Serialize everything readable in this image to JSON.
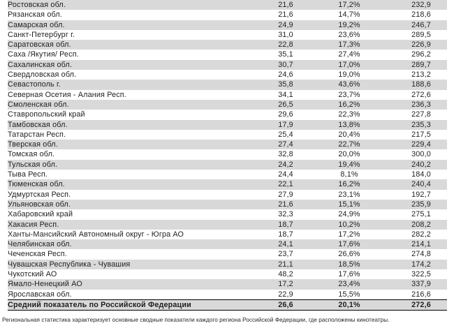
{
  "colors": {
    "stripe_gray": "#d9d9d9",
    "row_white": "#ffffff",
    "text": "#1f1f1f",
    "summary_border": "#000000"
  },
  "table": {
    "rows": [
      {
        "region": "Ростовская обл.",
        "values": [
          "21,6",
          "17,2%",
          "232,9"
        ]
      },
      {
        "region": "Рязанская обл.",
        "values": [
          "21,6",
          "14,7%",
          "218,6"
        ]
      },
      {
        "region": "Самарская обл.",
        "values": [
          "24,9",
          "19,2%",
          "246,7"
        ]
      },
      {
        "region": "Санкт-Петербург г.",
        "values": [
          "31,0",
          "23,6%",
          "289,5"
        ]
      },
      {
        "region": "Саратовская обл.",
        "values": [
          "22,8",
          "17,3%",
          "226,9"
        ]
      },
      {
        "region": "Саха /Якутия/ Респ.",
        "values": [
          "35,1",
          "27,4%",
          "296,2"
        ]
      },
      {
        "region": "Сахалинская обл.",
        "values": [
          "30,7",
          "17,0%",
          "289,7"
        ]
      },
      {
        "region": "Свердловская обл.",
        "values": [
          "24,6",
          "19,0%",
          "213,2"
        ]
      },
      {
        "region": "Севастополь г.",
        "values": [
          "35,8",
          "43,6%",
          "188,6"
        ]
      },
      {
        "region": "Северная Осетия - Алания Респ.",
        "values": [
          "34,1",
          "23,7%",
          "272,6"
        ]
      },
      {
        "region": "Смоленская обл.",
        "values": [
          "26,5",
          "16,2%",
          "236,3"
        ]
      },
      {
        "region": "Ставропольский край",
        "values": [
          "29,6",
          "22,3%",
          "227,8"
        ]
      },
      {
        "region": "Тамбовская обл.",
        "values": [
          "17,9",
          "13,8%",
          "235,3"
        ]
      },
      {
        "region": "Татарстан Респ.",
        "values": [
          "25,4",
          "20,4%",
          "217,5"
        ]
      },
      {
        "region": "Тверская обл.",
        "values": [
          "27,4",
          "22,7%",
          "229,4"
        ]
      },
      {
        "region": "Томская обл.",
        "values": [
          "32,8",
          "20,0%",
          "300,0"
        ]
      },
      {
        "region": "Тульская обл.",
        "values": [
          "24,2",
          "19,4%",
          "240,2"
        ]
      },
      {
        "region": "Тыва Респ.",
        "values": [
          "24,4",
          "8,1%",
          "184,0"
        ]
      },
      {
        "region": "Тюменская обл.",
        "values": [
          "22,1",
          "16,2%",
          "240,4"
        ]
      },
      {
        "region": "Удмуртская Респ.",
        "values": [
          "27,9",
          "23,1%",
          "192,7"
        ]
      },
      {
        "region": "Ульяновская обл.",
        "values": [
          "21,6",
          "15,1%",
          "235,9"
        ]
      },
      {
        "region": "Хабаровский край",
        "values": [
          "32,3",
          "24,9%",
          "275,1"
        ]
      },
      {
        "region": "Хакасия Респ.",
        "values": [
          "18,7",
          "10,2%",
          "208,2"
        ]
      },
      {
        "region": "Ханты-Мансийский Автономный округ - Югра АО",
        "values": [
          "18,7",
          "17,2%",
          "282,2"
        ]
      },
      {
        "region": "Челябинская обл.",
        "values": [
          "24,1",
          "17,6%",
          "214,1"
        ]
      },
      {
        "region": "Чеченская Респ.",
        "values": [
          "23,7",
          "26,6%",
          "274,8"
        ]
      },
      {
        "region": "Чувашская Республика - Чувашия",
        "values": [
          "21,1",
          "18,5%",
          "174,2"
        ]
      },
      {
        "region": "Чукотский АО",
        "values": [
          "48,2",
          "17,6%",
          "322,5"
        ]
      },
      {
        "region": "Ямало-Ненецкий АО",
        "values": [
          "17,2",
          "23,4%",
          "337,9"
        ]
      },
      {
        "region": "Ярославская обл.",
        "values": [
          "22,9",
          "15,5%",
          "216,6"
        ]
      }
    ],
    "summary": {
      "region": "Средний показатель по Российской Федерации",
      "values": [
        "26,6",
        "20,1%",
        "272,6"
      ]
    }
  },
  "footnote": "Региональная статистика характеризует основные сводные показатели каждого региона Российской Федерации, где расположены кинотеатры."
}
